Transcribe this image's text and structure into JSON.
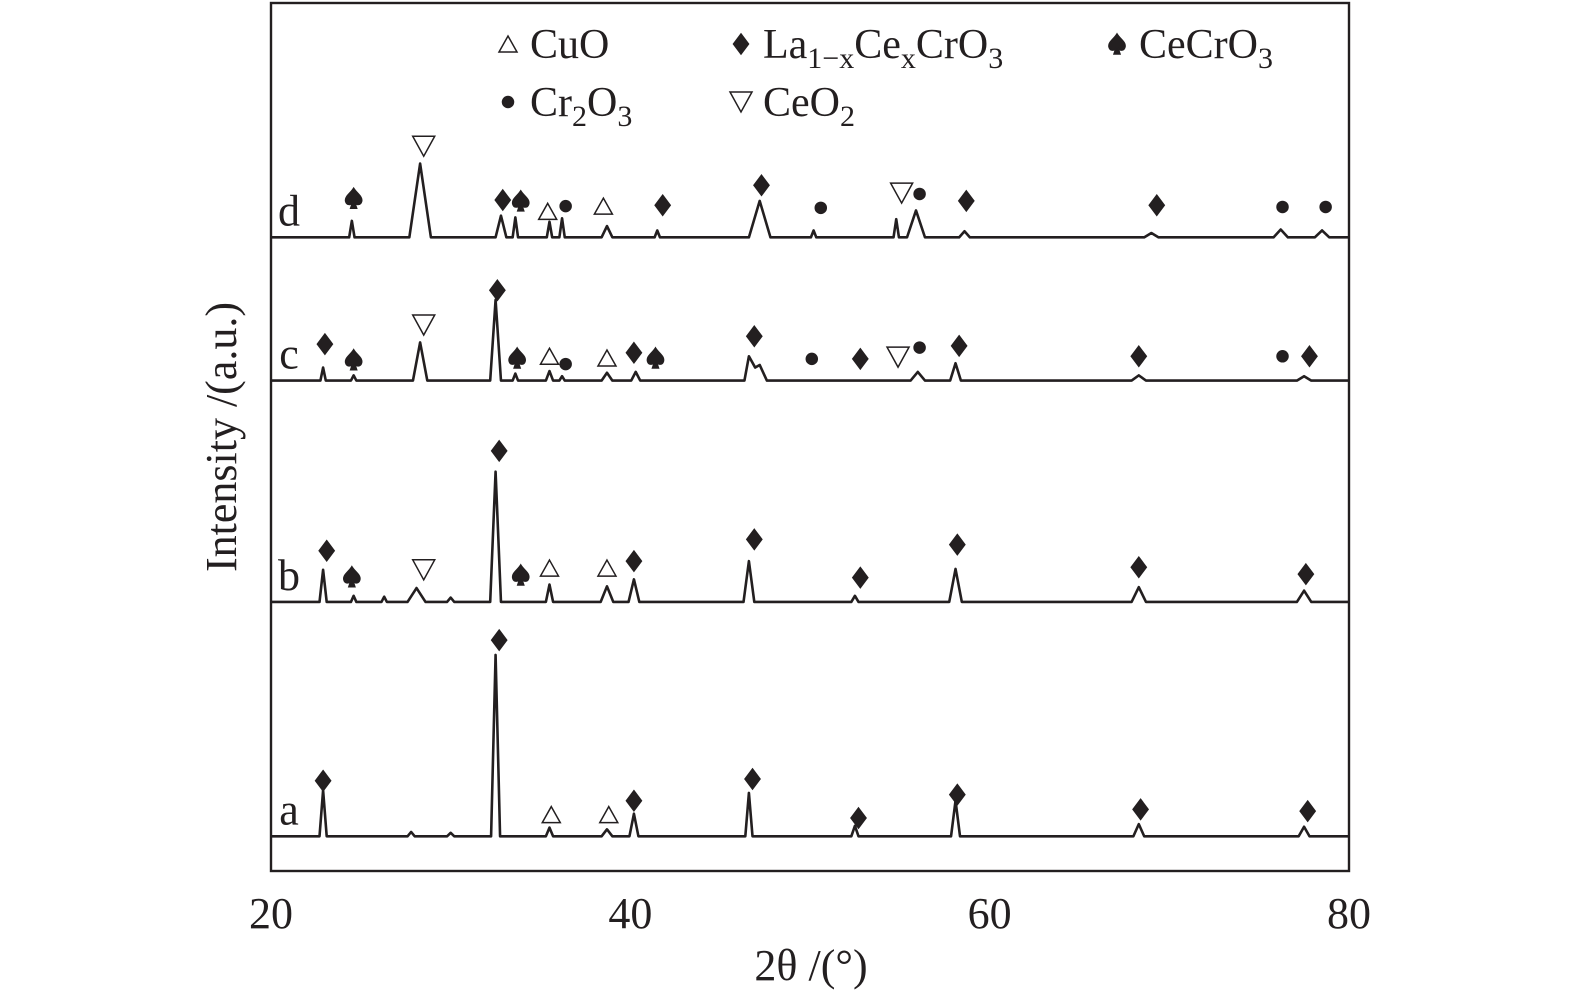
{
  "chart_data": {
    "type": "line",
    "xlabel": "2θ /(°)",
    "ylabel": "Intensity /(a.u.)",
    "xlim": [
      20,
      80
    ],
    "xticks": [
      20,
      40,
      60,
      80
    ],
    "ylim": [
      0,
      100
    ],
    "grid": false,
    "series": [
      {
        "name": "a",
        "color": "#231f20",
        "x": [
          20,
          22.7,
          22.9,
          23.1,
          27.6,
          27.8,
          28.0,
          29.8,
          30.0,
          30.2,
          32.25,
          32.5,
          32.75,
          35.3,
          35.5,
          35.7,
          38.4,
          38.7,
          39.0,
          39.95,
          40.2,
          40.45,
          46.4,
          46.6,
          46.8,
          52.3,
          52.5,
          52.7,
          57.85,
          58.1,
          58.35,
          68.0,
          68.3,
          68.6,
          77.2,
          77.5,
          77.8,
          80
        ],
        "values": [
          4,
          4,
          9.3,
          4,
          4,
          4.5,
          4,
          4,
          4.4,
          4,
          4,
          24.9,
          4,
          4,
          5.0,
          4,
          4,
          4.8,
          4,
          4,
          6.6,
          4,
          4,
          9.0,
          4,
          4,
          5.2,
          4,
          4,
          8.1,
          4,
          4,
          5.4,
          4,
          4,
          5.1,
          4,
          4
        ]
      },
      {
        "name": "b",
        "color": "#231f20",
        "x": [
          20,
          22.7,
          22.9,
          23.1,
          24.45,
          24.6,
          24.75,
          26.15,
          26.3,
          26.45,
          27.6,
          28.1,
          28.6,
          29.8,
          30.0,
          30.2,
          32.2,
          32.5,
          32.8,
          35.3,
          35.5,
          35.7,
          38.35,
          38.7,
          39.05,
          39.9,
          40.2,
          40.5,
          46.3,
          46.6,
          46.9,
          52.3,
          52.5,
          52.7,
          57.75,
          58.1,
          58.45,
          67.9,
          68.3,
          68.7,
          77.1,
          77.5,
          77.9,
          80
        ],
        "values": [
          31,
          31,
          34.7,
          31,
          31,
          31.7,
          31,
          31,
          31.6,
          31,
          31,
          32.6,
          31,
          31,
          31.5,
          31,
          31,
          46.0,
          31,
          31,
          33.0,
          31,
          31,
          32.8,
          31,
          31,
          33.6,
          31,
          31,
          35.7,
          31,
          31,
          31.7,
          31,
          31,
          34.8,
          31,
          31,
          32.7,
          31,
          31,
          32.3,
          31,
          31
        ]
      },
      {
        "name": "c",
        "color": "#231f20",
        "x": [
          20,
          22.75,
          22.9,
          23.05,
          24.45,
          24.6,
          24.75,
          27.9,
          28.3,
          28.7,
          32.2,
          32.5,
          32.8,
          33.45,
          33.6,
          33.75,
          35.3,
          35.5,
          35.7,
          36.05,
          36.2,
          36.35,
          38.4,
          38.7,
          39.0,
          40.05,
          40.3,
          40.55,
          46.35,
          46.6,
          46.95,
          47.2,
          47.6,
          55.6,
          56.0,
          56.4,
          57.8,
          58.1,
          58.4,
          67.9,
          68.3,
          68.7,
          77.1,
          77.5,
          77.9,
          80
        ],
        "values": [
          56.5,
          56.5,
          58.0,
          56.5,
          56.5,
          57.1,
          56.5,
          56.5,
          60.9,
          56.5,
          56.5,
          65.8,
          56.5,
          56.5,
          57.3,
          56.5,
          56.5,
          57.6,
          56.5,
          56.5,
          57.0,
          56.5,
          56.5,
          57.4,
          56.5,
          56.5,
          57.5,
          56.5,
          56.5,
          59.3,
          58.0,
          58.3,
          56.5,
          56.5,
          57.5,
          56.5,
          56.5,
          58.5,
          56.5,
          56.5,
          57.1,
          56.5,
          56.5,
          57.0,
          56.5,
          56.5
        ]
      },
      {
        "name": "d",
        "color": "#231f20",
        "x": [
          20,
          24.35,
          24.5,
          24.65,
          27.7,
          28.3,
          28.9,
          32.5,
          32.8,
          33.1,
          33.45,
          33.6,
          33.75,
          35.35,
          35.5,
          35.65,
          36.05,
          36.2,
          36.35,
          38.4,
          38.7,
          39.0,
          41.35,
          41.5,
          41.65,
          46.6,
          47.2,
          47.8,
          50.05,
          50.2,
          50.35,
          54.65,
          54.8,
          54.95,
          55.4,
          55.9,
          56.4,
          58.3,
          58.6,
          58.9,
          68.6,
          69.0,
          69.4,
          75.8,
          76.2,
          76.6,
          78.1,
          78.5,
          78.9,
          80
        ],
        "values": [
          73,
          73,
          74.9,
          73,
          73,
          81.5,
          73,
          73,
          75.5,
          73,
          73,
          75.3,
          73,
          73,
          74.8,
          73,
          73,
          75.2,
          73,
          73,
          74.3,
          73,
          73,
          73.8,
          73,
          73,
          77.2,
          73,
          73,
          73.8,
          73,
          73,
          75.1,
          73,
          73,
          76.1,
          73,
          73,
          73.7,
          73,
          73,
          73.5,
          73,
          73,
          73.9,
          73,
          73,
          73.8,
          73,
          73
        ]
      }
    ],
    "phases": [
      {
        "name": [
          "CuO"
        ],
        "marker": "triangle-up",
        "x": [
          35.6,
          38.8,
          35.5,
          38.7,
          35.5,
          38.7,
          35.4,
          38.5
        ],
        "y": [
          6.5,
          6.5,
          34.9,
          34.9,
          59.3,
          59.1,
          76.0,
          76.6
        ]
      },
      {
        "name": [
          "La",
          "1−x",
          "Ce",
          "x",
          "CrO",
          "3"
        ],
        "marker": "diamond",
        "x": [
          22.9,
          32.7,
          40.2,
          46.8,
          52.7,
          58.2,
          68.4,
          77.7,
          23.1,
          32.7,
          40.2,
          46.9,
          52.8,
          58.2,
          68.3,
          77.6,
          23.0,
          32.6,
          40.2,
          46.9,
          52.8,
          58.3,
          68.3,
          77.8,
          32.9,
          41.8,
          47.3,
          58.7,
          69.3
        ],
        "y": [
          10.4,
          26.6,
          8.1,
          10.6,
          6.1,
          8.8,
          7.1,
          6.9,
          36.9,
          48.4,
          35.7,
          38.2,
          33.8,
          37.6,
          35.0,
          34.2,
          60.7,
          66.9,
          59.7,
          61.6,
          59.0,
          60.5,
          59.3,
          59.3,
          77.3,
          76.7,
          79.0,
          77.2,
          76.7
        ]
      },
      {
        "name": [
          "CeCrO",
          "3"
        ],
        "marker": "spade",
        "x": [
          24.5,
          33.9,
          24.6,
          33.7,
          41.4,
          24.6,
          33.9
        ],
        "y": [
          33.9,
          34.1,
          58.9,
          59.1,
          59.1,
          77.5,
          77.2
        ]
      },
      {
        "name": [
          "Cr",
          "2",
          "O",
          "3"
        ],
        "marker": "circle",
        "x": [
          36.4,
          50.1,
          56.1,
          76.3,
          36.4,
          50.6,
          56.1,
          76.3,
          78.7
        ],
        "y": [
          58.4,
          59.0,
          60.3,
          59.3,
          76.6,
          76.4,
          78.0,
          76.5,
          76.5
        ]
      },
      {
        "name": [
          "CeO",
          "2"
        ],
        "marker": "triangle-down",
        "x": [
          28.5,
          28.5,
          54.9,
          28.5,
          55.1
        ],
        "y": [
          34.7,
          62.9,
          59.2,
          83.5,
          78.1
        ]
      }
    ]
  }
}
